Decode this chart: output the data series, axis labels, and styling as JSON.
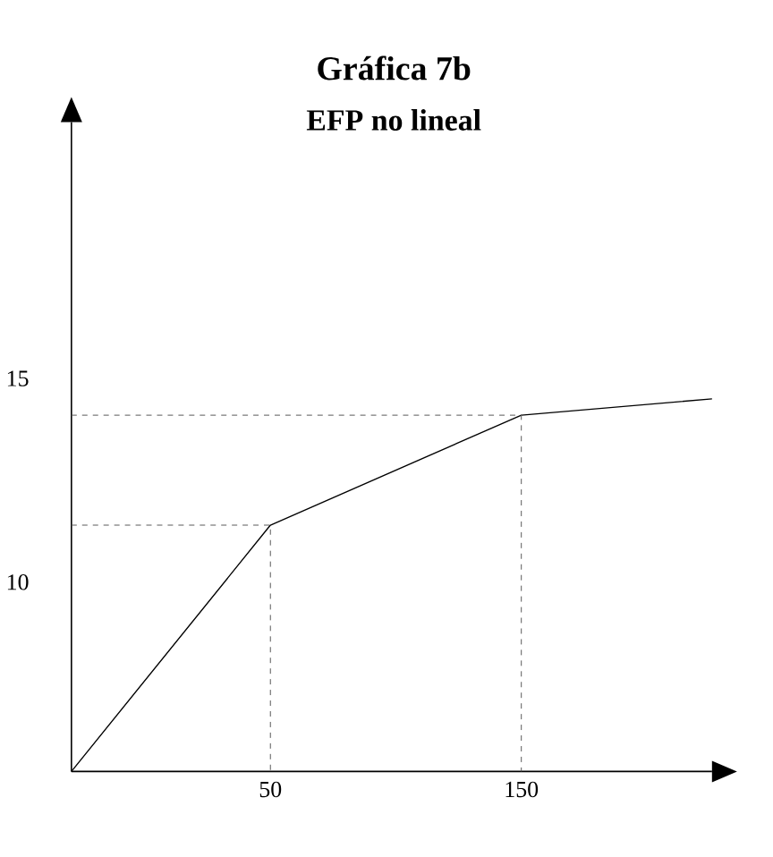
{
  "chart_data": {
    "type": "line",
    "title": "Gráfica 7b",
    "subtitle": "EFP no lineal",
    "x": [
      -29.3,
      50,
      150,
      226
    ],
    "series": [
      {
        "color": "#000000",
        "values": [
          5.35,
          11.4,
          14.1,
          14.5
        ]
      },
      {
        "color": "#595959",
        "line_style": "dashed",
        "x": [
          -29.3,
          50,
          50
        ],
        "values": [
          11.4,
          11.4,
          5.35
        ]
      },
      {
        "color": "#595959",
        "line_style": "dashed",
        "x": [
          -29.3,
          150,
          150
        ],
        "values": [
          14.1,
          14.1,
          5.35
        ]
      }
    ],
    "xlim": [
      -29.3,
      226
    ],
    "ylim": [
      5.35,
      21.3
    ],
    "xticks": [
      50,
      150
    ],
    "yticks": [
      10,
      15
    ],
    "grid": false,
    "marker": "none",
    "line_style": "solid"
  }
}
